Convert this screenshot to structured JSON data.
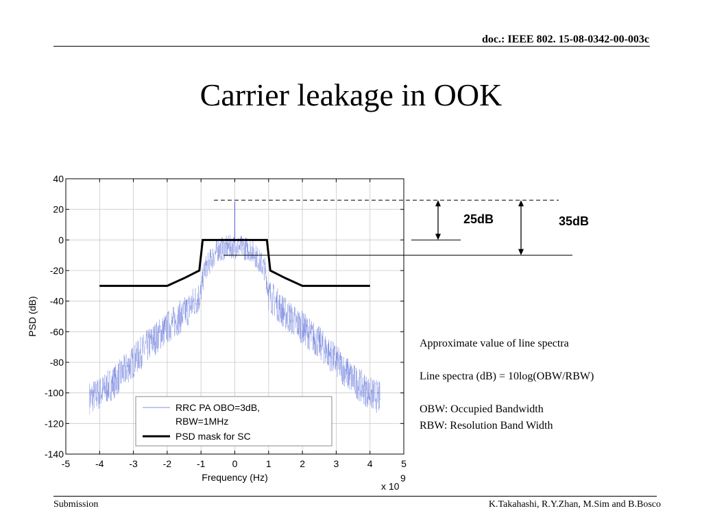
{
  "header": {
    "doc_id": "doc.: IEEE 802. 15-08-0342-00-003c"
  },
  "slide": {
    "title": "Carrier leakage in OOK"
  },
  "chart_data": {
    "type": "line",
    "xlabel": "Frequency (Hz)",
    "ylabel": "PSD (dB)",
    "x_multiplier": "x 10",
    "x_multiplier_exp": "9",
    "xlim": [
      -5,
      5
    ],
    "ylim": [
      -140,
      40
    ],
    "xticks": [
      "-5",
      "-4",
      "-3",
      "-2",
      "-1",
      "0",
      "1",
      "2",
      "3",
      "4",
      "5"
    ],
    "yticks": [
      "40",
      "20",
      "0",
      "-20",
      "-40",
      "-60",
      "-80",
      "-100",
      "-120",
      "-140"
    ],
    "grid": true,
    "legend": {
      "placement": "bottom-center"
    },
    "series": [
      {
        "name": "RRC PA OBO=3dB,\nRBW=1MHz",
        "legend_lines": [
          "RRC PA OBO=3dB,",
          "RBW=1MHz"
        ],
        "color": "#4a5fd6",
        "envelope": {
          "x": [
            -4.3,
            -4.0,
            -3.5,
            -3.0,
            -2.5,
            -2.0,
            -1.5,
            -1.0,
            -0.9,
            -0.5,
            -0.1,
            0.1,
            0.5,
            0.9,
            1.0,
            1.5,
            2.0,
            2.5,
            3.0,
            3.5,
            4.0,
            4.3
          ],
          "y": [
            -100,
            -97,
            -88,
            -76,
            -64,
            -54,
            -45,
            -32,
            -17,
            -4,
            -2,
            -2,
            -4,
            -17,
            -32,
            -45,
            -54,
            -64,
            -76,
            -88,
            -97,
            -100
          ]
        },
        "carrier_peak": {
          "x": 0,
          "y": 25
        }
      },
      {
        "name": "PSD mask for SC",
        "color": "#000000",
        "x": [
          -4,
          -2,
          -1.5,
          -1.05,
          -0.95,
          0.95,
          1.05,
          1.5,
          2,
          4
        ],
        "y": [
          -30,
          -30,
          -25,
          -20,
          0,
          0,
          -20,
          -25,
          -30,
          -30
        ]
      }
    ],
    "annotations": {
      "reference_levels": [
        {
          "label": "peak",
          "y": 26
        },
        {
          "label": "0 dB",
          "y": 0
        },
        {
          "label": "line",
          "y": -10
        }
      ],
      "measurements": [
        {
          "label": "25dB",
          "from": 0,
          "to": 26
        },
        {
          "label": "35dB",
          "from": -10,
          "to": 26
        }
      ]
    }
  },
  "notes": [
    "Approximate value of  line spectra",
    "",
    "Line spectra (dB) = 10log(OBW/RBW)",
    "",
    "OBW: Occupied Bandwidth",
    "RBW: Resolution Band Width"
  ],
  "footer": {
    "left": "Submission",
    "right": "K.Takahashi, R.Y.Zhan, M.Sim and B.Bosco"
  }
}
